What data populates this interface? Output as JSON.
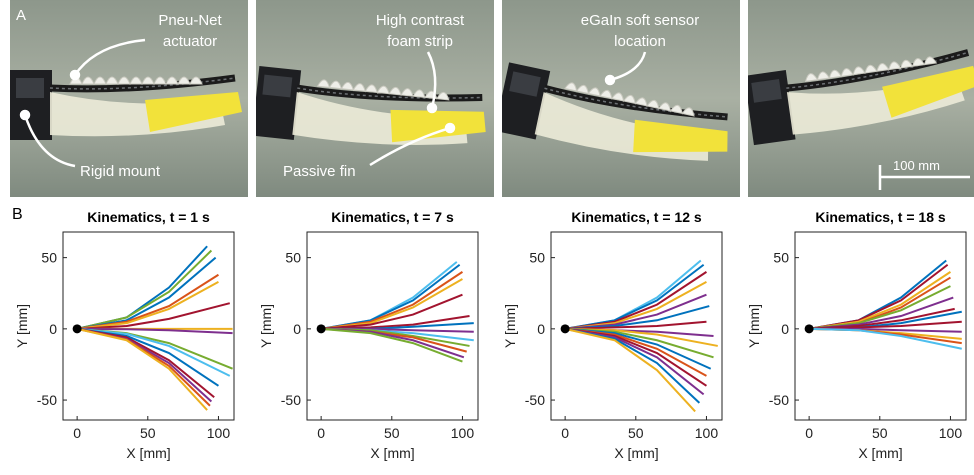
{
  "panel_a": {
    "label": "A",
    "annotations": [
      [
        "Pneu-Net",
        "actuator"
      ],
      [
        "Rigid mount"
      ],
      [
        "High contrast",
        "foam strip"
      ],
      [
        "Passive fin"
      ],
      [
        "eGaIn soft sensor",
        "location"
      ]
    ],
    "scale_bar": "100 mm"
  },
  "panel_b": {
    "label": "B"
  },
  "chart_data": [
    {
      "type": "line",
      "title": "Kinematics, t = 1 s",
      "xlabel": "X [mm]",
      "ylabel": "Y [mm]",
      "xlim": [
        -10,
        111
      ],
      "ylim": [
        -64,
        68
      ],
      "xticks": [
        0,
        50,
        100
      ],
      "yticks": [
        -50,
        0,
        50
      ],
      "series": [
        {
          "color": "#0072BD",
          "x": [
            0,
            35,
            65,
            92
          ],
          "values": [
            0,
            8,
            29,
            58
          ]
        },
        {
          "color": "#77AC30",
          "x": [
            0,
            35,
            65,
            95
          ],
          "values": [
            0,
            8,
            26,
            55
          ]
        },
        {
          "color": "#0072BD",
          "x": [
            0,
            35,
            65,
            98
          ],
          "values": [
            0,
            6,
            22,
            50
          ]
        },
        {
          "color": "#D95319",
          "x": [
            0,
            35,
            65,
            100
          ],
          "values": [
            0,
            5,
            16,
            38
          ]
        },
        {
          "color": "#EDB120",
          "x": [
            0,
            35,
            65,
            100
          ],
          "values": [
            0,
            4,
            14,
            33
          ]
        },
        {
          "color": "#A2142F",
          "x": [
            0,
            35,
            65,
            108
          ],
          "values": [
            0,
            2,
            7,
            18
          ]
        },
        {
          "color": "#EDB120",
          "x": [
            0,
            35,
            65,
            110
          ],
          "values": [
            0,
            0,
            0,
            0
          ]
        },
        {
          "color": "#7E2F8E",
          "x": [
            0,
            35,
            65,
            110
          ],
          "values": [
            0,
            -0.3,
            -1,
            -3
          ]
        },
        {
          "color": "#77AC30",
          "x": [
            0,
            35,
            65,
            110
          ],
          "values": [
            0,
            -3,
            -10,
            -28
          ]
        },
        {
          "color": "#4DBEEE",
          "x": [
            0,
            35,
            65,
            108
          ],
          "values": [
            0,
            -3.5,
            -12,
            -33
          ]
        },
        {
          "color": "#0072BD",
          "x": [
            0,
            35,
            65,
            100
          ],
          "values": [
            0,
            -5,
            -17,
            -40
          ]
        },
        {
          "color": "#A2142F",
          "x": [
            0,
            35,
            65,
            97
          ],
          "values": [
            0,
            -6,
            -22,
            -48
          ]
        },
        {
          "color": "#7E2F8E",
          "x": [
            0,
            35,
            65,
            95
          ],
          "values": [
            0,
            -7,
            -24,
            -51
          ]
        },
        {
          "color": "#D95319",
          "x": [
            0,
            35,
            65,
            94
          ],
          "values": [
            0,
            -7.5,
            -26,
            -54
          ]
        },
        {
          "color": "#EDB120",
          "x": [
            0,
            35,
            65,
            92
          ],
          "values": [
            0,
            -8,
            -28,
            -57
          ]
        }
      ]
    },
    {
      "type": "line",
      "title": "Kinematics, t = 7 s",
      "xlabel": "X [mm]",
      "ylabel": "Y [mm]",
      "xlim": [
        -10,
        111
      ],
      "ylim": [
        -64,
        68
      ],
      "xticks": [
        0,
        50,
        100
      ],
      "yticks": [
        -50,
        0,
        50
      ],
      "series": [
        {
          "color": "#4DBEEE",
          "x": [
            0,
            35,
            65,
            96
          ],
          "values": [
            0,
            6,
            22,
            47
          ]
        },
        {
          "color": "#0072BD",
          "x": [
            0,
            35,
            65,
            98
          ],
          "values": [
            0,
            6,
            20,
            45
          ]
        },
        {
          "color": "#D95319",
          "x": [
            0,
            35,
            65,
            100
          ],
          "values": [
            0,
            5,
            17,
            40
          ]
        },
        {
          "color": "#EDB120",
          "x": [
            0,
            35,
            65,
            100
          ],
          "values": [
            0,
            4,
            15,
            35
          ]
        },
        {
          "color": "#A2142F",
          "x": [
            0,
            35,
            65,
            100
          ],
          "values": [
            0,
            3,
            10,
            24
          ]
        },
        {
          "color": "#A2142F",
          "x": [
            0,
            35,
            65,
            105
          ],
          "values": [
            0,
            1,
            3,
            9
          ]
        },
        {
          "color": "#0072BD",
          "x": [
            0,
            35,
            65,
            108
          ],
          "values": [
            0,
            0,
            1.5,
            4
          ]
        },
        {
          "color": "#7E2F8E",
          "x": [
            0,
            35,
            65,
            108
          ],
          "values": [
            0,
            0,
            -1,
            -2
          ]
        },
        {
          "color": "#4DBEEE",
          "x": [
            0,
            35,
            65,
            108
          ],
          "values": [
            0,
            -1,
            -3,
            -8
          ]
        },
        {
          "color": "#77AC30",
          "x": [
            0,
            35,
            65,
            105
          ],
          "values": [
            0,
            -1,
            -5,
            -12
          ]
        },
        {
          "color": "#D95319",
          "x": [
            0,
            35,
            65,
            103
          ],
          "values": [
            0,
            -2,
            -6,
            -16
          ]
        },
        {
          "color": "#7E2F8E",
          "x": [
            0,
            35,
            65,
            101
          ],
          "values": [
            0,
            -2,
            -8,
            -20
          ]
        },
        {
          "color": "#77AC30",
          "x": [
            0,
            35,
            65,
            100
          ],
          "values": [
            0,
            -3,
            -10,
            -23
          ]
        }
      ]
    },
    {
      "type": "line",
      "title": "Kinematics, t = 12 s",
      "xlabel": "X [mm]",
      "ylabel": "Y [mm]",
      "xlim": [
        -10,
        111
      ],
      "ylim": [
        -64,
        68
      ],
      "xticks": [
        0,
        50,
        100
      ],
      "yticks": [
        -50,
        0,
        50
      ],
      "series": [
        {
          "color": "#4DBEEE",
          "x": [
            0,
            35,
            65,
            96
          ],
          "values": [
            0,
            6,
            22,
            48
          ]
        },
        {
          "color": "#0072BD",
          "x": [
            0,
            35,
            65,
            98
          ],
          "values": [
            0,
            6,
            20,
            45
          ]
        },
        {
          "color": "#A2142F",
          "x": [
            0,
            35,
            65,
            100
          ],
          "values": [
            0,
            5,
            17,
            40
          ]
        },
        {
          "color": "#EDB120",
          "x": [
            0,
            35,
            65,
            100
          ],
          "values": [
            0,
            4,
            14,
            33
          ]
        },
        {
          "color": "#7E2F8E",
          "x": [
            0,
            35,
            65,
            100
          ],
          "values": [
            0,
            3,
            10,
            24
          ]
        },
        {
          "color": "#0072BD",
          "x": [
            0,
            35,
            65,
            102
          ],
          "values": [
            0,
            2,
            6,
            16
          ]
        },
        {
          "color": "#A2142F",
          "x": [
            0,
            35,
            65,
            100
          ],
          "values": [
            0,
            1,
            2,
            5
          ]
        },
        {
          "color": "#7E2F8E",
          "x": [
            0,
            35,
            65,
            105
          ],
          "values": [
            0,
            -1,
            -2,
            -5
          ]
        },
        {
          "color": "#EDB120",
          "x": [
            0,
            35,
            65,
            108
          ],
          "values": [
            0,
            -1,
            -4,
            -12
          ]
        },
        {
          "color": "#77AC30",
          "x": [
            0,
            35,
            65,
            105
          ],
          "values": [
            0,
            -2,
            -8,
            -20
          ]
        },
        {
          "color": "#0072BD",
          "x": [
            0,
            35,
            65,
            103
          ],
          "values": [
            0,
            -3,
            -11,
            -28
          ]
        },
        {
          "color": "#D95319",
          "x": [
            0,
            35,
            65,
            100
          ],
          "values": [
            0,
            -4,
            -14,
            -33
          ]
        },
        {
          "color": "#A2142F",
          "x": [
            0,
            35,
            65,
            100
          ],
          "values": [
            0,
            -5,
            -17,
            -40
          ]
        },
        {
          "color": "#7E2F8E",
          "x": [
            0,
            35,
            65,
            98
          ],
          "values": [
            0,
            -6,
            -20,
            -46
          ]
        },
        {
          "color": "#0072BD",
          "x": [
            0,
            35,
            65,
            95
          ],
          "values": [
            0,
            -7,
            -24,
            -52
          ]
        },
        {
          "color": "#EDB120",
          "x": [
            0,
            35,
            65,
            92
          ],
          "values": [
            0,
            -8,
            -29,
            -58
          ]
        }
      ]
    },
    {
      "type": "line",
      "title": "Kinematics, t = 18 s",
      "xlabel": "X [mm]",
      "ylabel": "Y [mm]",
      "xlim": [
        -10,
        111
      ],
      "ylim": [
        -64,
        68
      ],
      "xticks": [
        0,
        50,
        100
      ],
      "yticks": [
        -50,
        0,
        50
      ],
      "series": [
        {
          "color": "#0072BD",
          "x": [
            0,
            35,
            65,
            97
          ],
          "values": [
            0,
            6,
            22,
            48
          ]
        },
        {
          "color": "#A2142F",
          "x": [
            0,
            35,
            65,
            98
          ],
          "values": [
            0,
            6,
            20,
            45
          ]
        },
        {
          "color": "#EDB120",
          "x": [
            0,
            35,
            65,
            100
          ],
          "values": [
            0,
            5,
            17,
            40
          ]
        },
        {
          "color": "#D95319",
          "x": [
            0,
            35,
            65,
            100
          ],
          "values": [
            0,
            4,
            15,
            36
          ]
        },
        {
          "color": "#77AC30",
          "x": [
            0,
            35,
            65,
            100
          ],
          "values": [
            0,
            4,
            13,
            30
          ]
        },
        {
          "color": "#7E2F8E",
          "x": [
            0,
            35,
            65,
            102
          ],
          "values": [
            0,
            3,
            9,
            22
          ]
        },
        {
          "color": "#A2142F",
          "x": [
            0,
            35,
            65,
            103
          ],
          "values": [
            0,
            2,
            6,
            14
          ]
        },
        {
          "color": "#0072BD",
          "x": [
            0,
            35,
            65,
            108
          ],
          "values": [
            0,
            1,
            4,
            12
          ]
        },
        {
          "color": "#A2142F",
          "x": [
            0,
            35,
            65,
            108
          ],
          "values": [
            0,
            1,
            2,
            5
          ]
        },
        {
          "color": "#7E2F8E",
          "x": [
            0,
            35,
            65,
            108
          ],
          "values": [
            0,
            0,
            -1,
            -2
          ]
        },
        {
          "color": "#EDB120",
          "x": [
            0,
            35,
            65,
            108
          ],
          "values": [
            0,
            -1,
            -3,
            -7
          ]
        },
        {
          "color": "#D95319",
          "x": [
            0,
            35,
            65,
            108
          ],
          "values": [
            0,
            -1,
            -4,
            -10
          ]
        },
        {
          "color": "#4DBEEE",
          "x": [
            0,
            35,
            65,
            108
          ],
          "values": [
            0,
            -1,
            -5,
            -14
          ]
        }
      ]
    }
  ]
}
